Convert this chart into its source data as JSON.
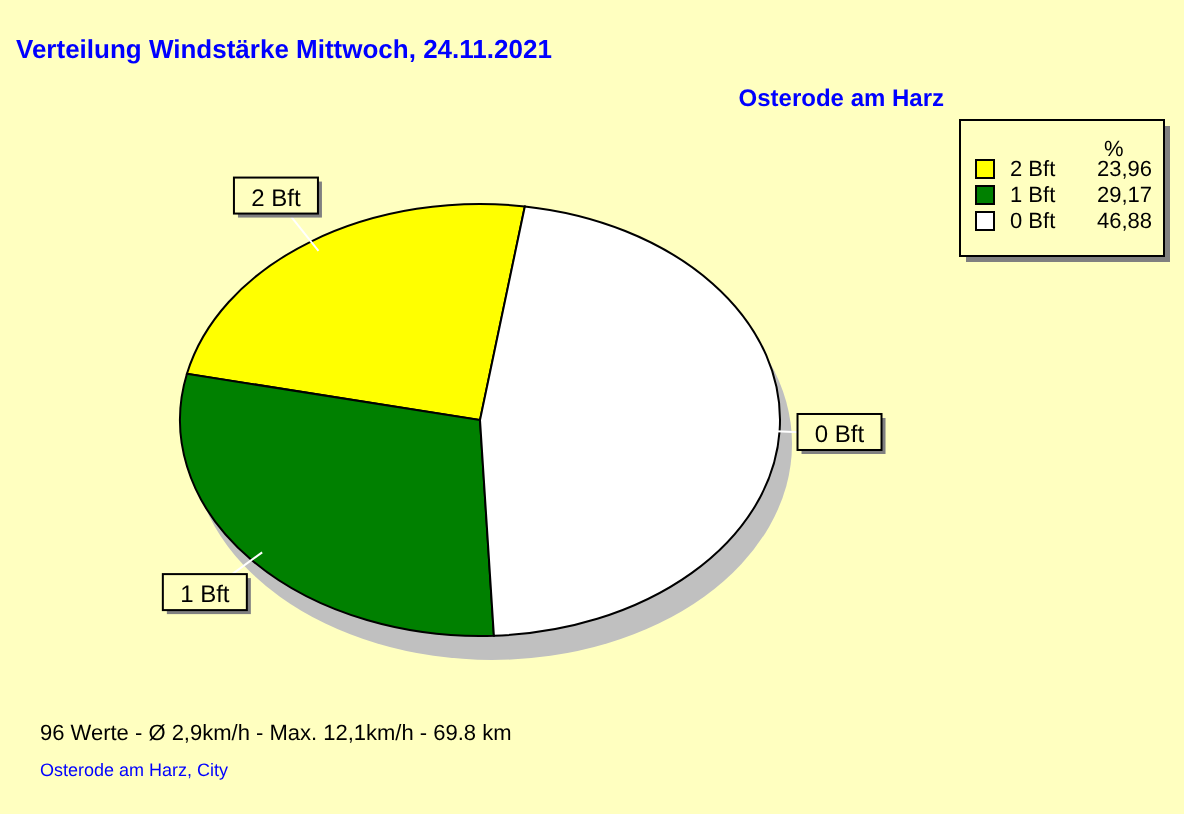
{
  "chart_data": {
    "type": "pie",
    "title": "Verteilung Windstärke  Mittwoch, 24.11.2021",
    "subtitle": "Osterode am Harz",
    "categories": [
      "2 Bft",
      "1 Bft",
      "0 Bft"
    ],
    "values": [
      23.96,
      29.17,
      46.88
    ],
    "colors": [
      "#ffff00",
      "#008000",
      "#ffffff"
    ],
    "value_labels": [
      "23,96",
      "29,17",
      "46,88"
    ],
    "legend": "top right",
    "legend_title": "%",
    "annotations": [
      "96 Werte   -   Ø 2,9km/h  -  Max. 12,1km/h   -   69.8 km",
      "Osterode am Harz, City"
    ]
  }
}
